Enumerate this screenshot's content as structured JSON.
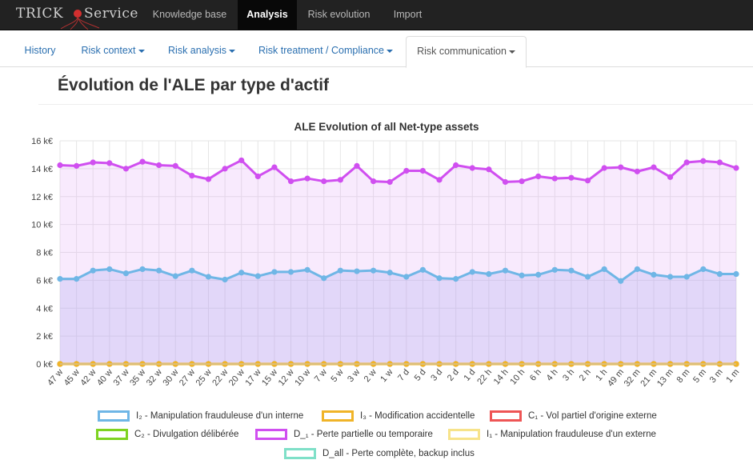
{
  "brand": {
    "left": "TRICK",
    "right": "Service"
  },
  "topnav": {
    "items": [
      {
        "label": "Knowledge base",
        "active": false
      },
      {
        "label": "Analysis",
        "active": true
      },
      {
        "label": "Risk evolution",
        "active": false
      },
      {
        "label": "Import",
        "active": false
      }
    ]
  },
  "subnav": {
    "tabs": [
      {
        "label": "History",
        "dropdown": false,
        "active": false
      },
      {
        "label": "Risk context",
        "dropdown": true,
        "active": false
      },
      {
        "label": "Risk analysis",
        "dropdown": true,
        "active": false
      },
      {
        "label": "Risk treatment / Compliance",
        "dropdown": true,
        "active": false
      },
      {
        "label": "Risk communication",
        "dropdown": true,
        "active": true
      }
    ]
  },
  "page_title": "Évolution de l'ALE par type d'actif",
  "chart_data": {
    "type": "area",
    "title": "ALE Evolution of all Net-type assets",
    "xlabel": "",
    "ylabel": "",
    "ylim": [
      0,
      16
    ],
    "yticks": [
      "0 k€",
      "2 k€",
      "4 k€",
      "6 k€",
      "8 k€",
      "10 k€",
      "12 k€",
      "14 k€",
      "16 k€"
    ],
    "grid": true,
    "legend_position": "bottom",
    "categories": [
      "47 w",
      "45 w",
      "42 w",
      "40 w",
      "37 w",
      "35 w",
      "32 w",
      "30 w",
      "27 w",
      "25 w",
      "22 w",
      "20 w",
      "17 w",
      "15 w",
      "12 w",
      "10 w",
      "7 w",
      "5 w",
      "3 w",
      "2 w",
      "1 w",
      "7 d",
      "5 d",
      "3 d",
      "2 d",
      "1 d",
      "22 h",
      "14 h",
      "10 h",
      "6 h",
      "4 h",
      "3 h",
      "2 h",
      "1 h",
      "49 m",
      "32 m",
      "21 m",
      "13 m",
      "8 m",
      "5 m",
      "3 m",
      "1 m"
    ],
    "series": [
      {
        "name": "I2 - Manipulation frauduleuse d'un interne",
        "color": "#6fb6e6",
        "fill": "rgba(150,150,235,0.22)",
        "values": [
          6.1,
          6.1,
          6.7,
          6.8,
          6.5,
          6.8,
          6.7,
          6.3,
          6.7,
          6.25,
          6.05,
          6.55,
          6.3,
          6.6,
          6.6,
          6.75,
          6.15,
          6.7,
          6.65,
          6.7,
          6.55,
          6.25,
          6.75,
          6.15,
          6.1,
          6.6,
          6.45,
          6.7,
          6.35,
          6.4,
          6.75,
          6.7,
          6.25,
          6.8,
          5.95,
          6.8,
          6.4,
          6.25,
          6.25,
          6.8,
          6.45,
          6.45
        ]
      },
      {
        "name": "I3 - Modification accidentelle",
        "color": "#f0b428",
        "fill": "none",
        "values": [
          0,
          0,
          0,
          0,
          0,
          0,
          0,
          0,
          0,
          0,
          0,
          0,
          0,
          0,
          0,
          0,
          0,
          0,
          0,
          0,
          0,
          0,
          0,
          0,
          0,
          0,
          0,
          0,
          0,
          0,
          0,
          0,
          0,
          0,
          0,
          0,
          0,
          0,
          0,
          0,
          0,
          0
        ]
      },
      {
        "name": "C1 - Vol partiel d'origine externe",
        "color": "#ee5555",
        "fill": "none",
        "values": [
          0,
          0,
          0,
          0,
          0,
          0,
          0,
          0,
          0,
          0,
          0,
          0,
          0,
          0,
          0,
          0,
          0,
          0,
          0,
          0,
          0,
          0,
          0,
          0,
          0,
          0,
          0,
          0,
          0,
          0,
          0,
          0,
          0,
          0,
          0,
          0,
          0,
          0,
          0,
          0,
          0,
          0
        ]
      },
      {
        "name": "C2 - Divulgation délibérée",
        "color": "#7ed321",
        "fill": "none",
        "values": [
          0,
          0,
          0,
          0,
          0,
          0,
          0,
          0,
          0,
          0,
          0,
          0,
          0,
          0,
          0,
          0,
          0,
          0,
          0,
          0,
          0,
          0,
          0,
          0,
          0,
          0,
          0,
          0,
          0,
          0,
          0,
          0,
          0,
          0,
          0,
          0,
          0,
          0,
          0,
          0,
          0,
          0
        ]
      },
      {
        "name": "D_1 - Perte partielle ou temporaire",
        "color": "#d04ff0",
        "fill": "rgba(225,160,245,0.22)",
        "values": [
          14.25,
          14.2,
          14.45,
          14.4,
          14.0,
          14.5,
          14.25,
          14.2,
          13.5,
          13.25,
          14.0,
          14.6,
          13.45,
          14.1,
          13.1,
          13.3,
          13.1,
          13.2,
          14.2,
          13.1,
          13.05,
          13.85,
          13.85,
          13.2,
          14.25,
          14.05,
          13.95,
          13.05,
          13.1,
          13.45,
          13.3,
          13.35,
          13.15,
          14.05,
          14.1,
          13.8,
          14.1,
          13.4,
          14.45,
          14.55,
          14.45,
          14.05
        ]
      },
      {
        "name": "I1 - Manipulation frauduleuse d'un externe",
        "color": "#f7e38a",
        "fill": "none",
        "values": [
          0,
          0,
          0,
          0,
          0,
          0,
          0,
          0,
          0,
          0,
          0,
          0,
          0,
          0,
          0,
          0,
          0,
          0,
          0,
          0,
          0,
          0,
          0,
          0,
          0,
          0,
          0,
          0,
          0,
          0,
          0,
          0,
          0,
          0,
          0,
          0,
          0,
          0,
          0,
          0,
          0,
          0
        ]
      },
      {
        "name": "D_all - Perte complète, backup inclus",
        "color": "#7fe0c8",
        "fill": "none",
        "values": [
          0,
          0,
          0,
          0,
          0,
          0,
          0,
          0,
          0,
          0,
          0,
          0,
          0,
          0,
          0,
          0,
          0,
          0,
          0,
          0,
          0,
          0,
          0,
          0,
          0,
          0,
          0,
          0,
          0,
          0,
          0,
          0,
          0,
          0,
          0,
          0,
          0,
          0,
          0,
          0,
          0,
          0
        ]
      }
    ]
  },
  "legend": {
    "items": [
      {
        "label": "I₂ - Manipulation frauduleuse d'un interne",
        "color": "#6fb6e6"
      },
      {
        "label": "I₃ - Modification accidentelle",
        "color": "#f0b428"
      },
      {
        "label": "C₁ - Vol partiel d'origine externe",
        "color": "#ee5555"
      },
      {
        "label": "C₂ -  Divulgation délibérée",
        "color": "#7ed321"
      },
      {
        "label": "D_₁ - Perte partielle ou temporaire",
        "color": "#d04ff0"
      },
      {
        "label": "I₁ - Manipulation frauduleuse d'un externe",
        "color": "#f7e38a"
      },
      {
        "label": "D_all - Perte complète, backup inclus",
        "color": "#7fe0c8"
      }
    ]
  }
}
